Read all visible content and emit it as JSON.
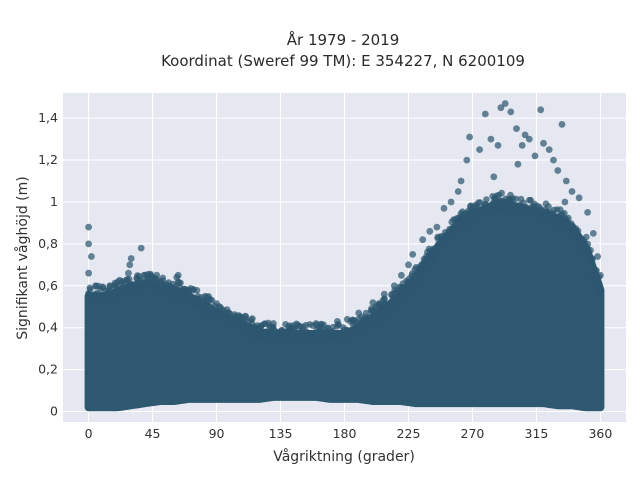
{
  "chart_data": {
    "type": "scatter",
    "title_line1": "År 1979 - 2019",
    "title_line2": "Koordinat (Sweref 99 TM): E 354227, N 6200109",
    "xlabel": "Vågriktning (grader)",
    "ylabel": "Signifikant våghöjd (m)",
    "xlim": [
      -18,
      378
    ],
    "ylim": [
      -0.05,
      1.52
    ],
    "x_ticks": [
      0,
      45,
      90,
      135,
      180,
      225,
      270,
      315,
      360
    ],
    "x_tick_labels": [
      "0",
      "45",
      "90",
      "135",
      "180",
      "225",
      "270",
      "315",
      "360"
    ],
    "y_ticks": [
      0,
      0.2,
      0.4,
      0.6,
      0.8,
      1.0,
      1.2,
      1.4
    ],
    "y_tick_labels": [
      "0",
      "0,2",
      "0,4",
      "0,6",
      "0,8",
      "1",
      "1,2",
      "1,4"
    ],
    "grid": true,
    "plot_background": "#e5e8f0",
    "point_color": "#2e5870",
    "point_opacity": 0.72,
    "series": [
      {
        "points": [
          [
            0,
            0.88
          ],
          [
            0,
            0.8
          ],
          [
            2,
            0.74
          ],
          [
            0,
            0.66
          ],
          [
            5,
            0.6
          ],
          [
            15,
            0.6
          ],
          [
            28,
            0.66
          ],
          [
            29,
            0.7
          ],
          [
            30,
            0.73
          ],
          [
            37,
            0.78
          ],
          [
            45,
            0.64
          ],
          [
            48,
            0.63
          ],
          [
            52,
            0.6
          ],
          [
            57,
            0.57
          ],
          [
            62,
            0.64
          ],
          [
            63,
            0.65
          ],
          [
            70,
            0.58
          ],
          [
            82,
            0.55
          ],
          [
            92,
            0.5
          ],
          [
            98,
            0.47
          ],
          [
            110,
            0.44
          ],
          [
            115,
            0.42
          ],
          [
            130,
            0.42
          ],
          [
            160,
            0.42
          ],
          [
            175,
            0.43
          ],
          [
            182,
            0.44
          ],
          [
            190,
            0.47
          ],
          [
            200,
            0.52
          ],
          [
            208,
            0.56
          ],
          [
            215,
            0.6
          ],
          [
            220,
            0.65
          ],
          [
            225,
            0.7
          ],
          [
            228,
            0.75
          ],
          [
            235,
            0.82
          ],
          [
            245,
            0.88
          ],
          [
            250,
            0.97
          ],
          [
            255,
            1.0
          ],
          [
            262,
            1.1
          ],
          [
            266,
            1.2
          ],
          [
            268,
            1.31
          ],
          [
            275,
            1.25
          ],
          [
            279,
            1.42
          ],
          [
            283,
            1.3
          ],
          [
            288,
            1.27
          ],
          [
            290,
            1.45
          ],
          [
            293,
            1.47
          ],
          [
            297,
            1.43
          ],
          [
            301,
            1.35
          ],
          [
            305,
            1.27
          ],
          [
            307,
            1.32
          ],
          [
            310,
            1.3
          ],
          [
            314,
            1.22
          ],
          [
            318,
            1.44
          ],
          [
            320,
            1.28
          ],
          [
            324,
            1.25
          ],
          [
            327,
            1.2
          ],
          [
            330,
            1.15
          ],
          [
            333,
            1.37
          ],
          [
            336,
            1.1
          ],
          [
            340,
            1.05
          ],
          [
            345,
            1.02
          ],
          [
            351,
            0.95
          ],
          [
            355,
            0.85
          ],
          [
            358,
            0.74
          ],
          [
            360,
            0.65
          ],
          [
            302,
            1.18
          ],
          [
            285,
            1.12
          ],
          [
            260,
            1.05
          ],
          [
            240,
            0.86
          ],
          [
            335,
            1.0
          ]
        ],
        "envelope": {
          "direction_deg": [
            0,
            10,
            20,
            30,
            40,
            50,
            60,
            70,
            80,
            90,
            100,
            110,
            120,
            130,
            140,
            150,
            160,
            170,
            180,
            190,
            200,
            210,
            220,
            230,
            240,
            250,
            260,
            270,
            280,
            290,
            300,
            310,
            320,
            330,
            340,
            350,
            360
          ],
          "upper_m": [
            0.55,
            0.55,
            0.57,
            0.6,
            0.61,
            0.6,
            0.58,
            0.55,
            0.52,
            0.47,
            0.44,
            0.41,
            0.38,
            0.37,
            0.37,
            0.37,
            0.37,
            0.37,
            0.37,
            0.4,
            0.45,
            0.5,
            0.56,
            0.64,
            0.74,
            0.82,
            0.9,
            0.94,
            0.97,
            1.0,
            0.98,
            0.96,
            0.95,
            0.92,
            0.88,
            0.78,
            0.58
          ],
          "lower_m": [
            0.02,
            0.02,
            0.02,
            0.03,
            0.04,
            0.05,
            0.05,
            0.06,
            0.06,
            0.06,
            0.06,
            0.06,
            0.06,
            0.07,
            0.07,
            0.07,
            0.07,
            0.06,
            0.06,
            0.06,
            0.05,
            0.05,
            0.05,
            0.04,
            0.04,
            0.04,
            0.04,
            0.04,
            0.04,
            0.04,
            0.04,
            0.04,
            0.04,
            0.03,
            0.03,
            0.02,
            0.02
          ]
        }
      }
    ]
  }
}
